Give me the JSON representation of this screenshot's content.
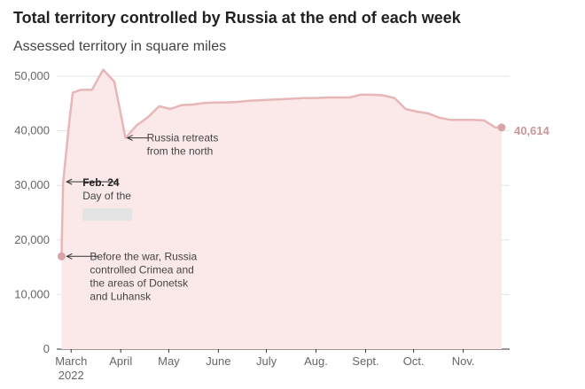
{
  "header": {
    "title": "Total territory controlled by Russia at the end of each week",
    "subtitle": "Assessed territory in square miles"
  },
  "colors": {
    "line": "#e7b6b8",
    "fill": "#fbe9e9",
    "marker": "#d9a4a7",
    "end_label": "#c9979a"
  },
  "chart_data": {
    "type": "area",
    "title": "Total territory controlled by Russia at the end of each week",
    "subtitle": "Assessed territory in square miles",
    "xlabel": "",
    "ylabel": "",
    "ylim": [
      0,
      50000
    ],
    "grid": true,
    "y_ticks": [
      "0",
      "10,000",
      "20,000",
      "30,000",
      "40,000",
      "50,000"
    ],
    "y_tick_values": [
      0,
      10000,
      20000,
      30000,
      40000,
      50000
    ],
    "x_tick_labels": [
      {
        "label": "March",
        "sub": "2022",
        "date": "2022-03-01"
      },
      {
        "label": "April",
        "date": "2022-04-01"
      },
      {
        "label": "May",
        "date": "2022-05-01"
      },
      {
        "label": "June",
        "date": "2022-06-01"
      },
      {
        "label": "July",
        "date": "2022-07-01"
      },
      {
        "label": "Aug.",
        "date": "2022-08-01"
      },
      {
        "label": "Sept.",
        "date": "2022-09-01"
      },
      {
        "label": "Oct.",
        "date": "2022-10-01"
      },
      {
        "label": "Nov.",
        "date": "2022-11-01"
      }
    ],
    "x_range": [
      "2022-02-20",
      "2022-11-30"
    ],
    "series": [
      {
        "points": [
          {
            "x": "2022-02-23",
            "y": 17000
          },
          {
            "x": "2022-02-24",
            "y": 30500
          },
          {
            "x": "2022-02-28",
            "y": 42000
          },
          {
            "x": "2022-03-02",
            "y": 47000
          },
          {
            "x": "2022-03-07",
            "y": 47500
          },
          {
            "x": "2022-03-14",
            "y": 47500
          },
          {
            "x": "2022-03-21",
            "y": 51200
          },
          {
            "x": "2022-03-28",
            "y": 49000
          },
          {
            "x": "2022-04-04",
            "y": 38700
          },
          {
            "x": "2022-04-11",
            "y": 41000
          },
          {
            "x": "2022-04-18",
            "y": 42500
          },
          {
            "x": "2022-04-25",
            "y": 44500
          },
          {
            "x": "2022-05-02",
            "y": 44000
          },
          {
            "x": "2022-05-09",
            "y": 44700
          },
          {
            "x": "2022-05-16",
            "y": 44800
          },
          {
            "x": "2022-05-23",
            "y": 45100
          },
          {
            "x": "2022-05-30",
            "y": 45200
          },
          {
            "x": "2022-06-06",
            "y": 45200
          },
          {
            "x": "2022-06-13",
            "y": 45300
          },
          {
            "x": "2022-06-20",
            "y": 45500
          },
          {
            "x": "2022-06-27",
            "y": 45600
          },
          {
            "x": "2022-07-04",
            "y": 45700
          },
          {
            "x": "2022-07-11",
            "y": 45800
          },
          {
            "x": "2022-07-18",
            "y": 45900
          },
          {
            "x": "2022-07-25",
            "y": 46000
          },
          {
            "x": "2022-08-01",
            "y": 46000
          },
          {
            "x": "2022-08-08",
            "y": 46100
          },
          {
            "x": "2022-08-15",
            "y": 46100
          },
          {
            "x": "2022-08-22",
            "y": 46100
          },
          {
            "x": "2022-08-29",
            "y": 46600
          },
          {
            "x": "2022-09-05",
            "y": 46600
          },
          {
            "x": "2022-09-12",
            "y": 46500
          },
          {
            "x": "2022-09-19",
            "y": 46000
          },
          {
            "x": "2022-09-26",
            "y": 44000
          },
          {
            "x": "2022-10-03",
            "y": 43500
          },
          {
            "x": "2022-10-10",
            "y": 43200
          },
          {
            "x": "2022-10-17",
            "y": 42400
          },
          {
            "x": "2022-10-24",
            "y": 42000
          },
          {
            "x": "2022-10-31",
            "y": 42000
          },
          {
            "x": "2022-11-07",
            "y": 42000
          },
          {
            "x": "2022-11-14",
            "y": 41900
          },
          {
            "x": "2022-11-21",
            "y": 40614
          },
          {
            "x": "2022-11-25",
            "y": 40614
          }
        ]
      }
    ],
    "end_value_label": "40,614",
    "annotations": [
      {
        "id": "before-war",
        "x": "2022-02-23",
        "y": 17000,
        "lines": [
          "Before the war, Russia",
          "controlled Crimea and",
          "the areas of Donetsk",
          "and Luhansk"
        ],
        "bold_first": false
      },
      {
        "id": "feb24",
        "x": "2022-02-24",
        "y": 30500,
        "lines": [
          "Feb. 24",
          "Day of the"
        ],
        "bold_first": true
      },
      {
        "id": "retreat",
        "x": "2022-04-04",
        "y": 38700,
        "lines": [
          "Russia retreats",
          "from the north"
        ],
        "bold_first": false
      }
    ]
  }
}
